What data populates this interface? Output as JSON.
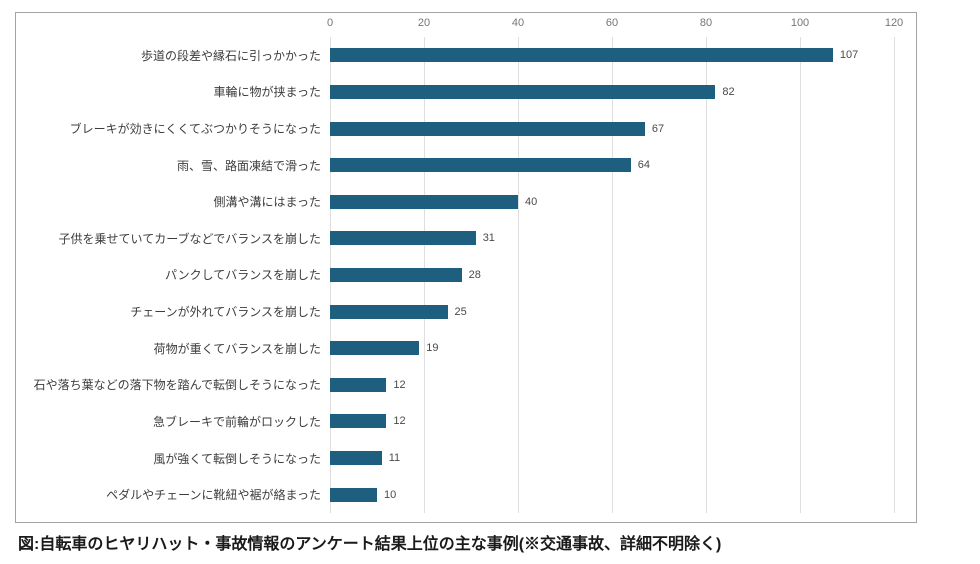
{
  "chart_data": {
    "type": "bar",
    "orientation": "horizontal",
    "categories": [
      "歩道の段差や縁石に引っかかった",
      "車輪に物が挟まった",
      "ブレーキが効きにくくてぶつかりそうになった",
      "雨、雪、路面凍結で滑った",
      "側溝や溝にはまった",
      "子供を乗せていてカーブなどでバランスを崩した",
      "パンクしてバランスを崩した",
      "チェーンが外れてバランスを崩した",
      "荷物が重くてバランスを崩した",
      "石や落ち葉などの落下物を踏んで転倒しそうになった",
      "急ブレーキで前輪がロックした",
      "風が強くて転倒しそうになった",
      "ペダルやチェーンに靴紐や裾が絡まった"
    ],
    "values": [
      107,
      82,
      67,
      64,
      40,
      31,
      28,
      25,
      19,
      12,
      12,
      11,
      10
    ],
    "value_labels_shown": true,
    "xticks": [
      0,
      20,
      40,
      60,
      80,
      100,
      120
    ],
    "xlim": [
      0,
      120
    ],
    "xlabel": "",
    "ylabel": "",
    "title": "",
    "legend": "none",
    "grid": "vertical",
    "axis_position": "top",
    "bar_color": "#1e5f80",
    "gridline_color": "#dedede",
    "frame_border_color": "#a3a3a3",
    "caption": "図:自転車のヒヤリハット・事故情報のアンケート結果上位の主な事例(※交通事故、詳細不明除く)"
  }
}
